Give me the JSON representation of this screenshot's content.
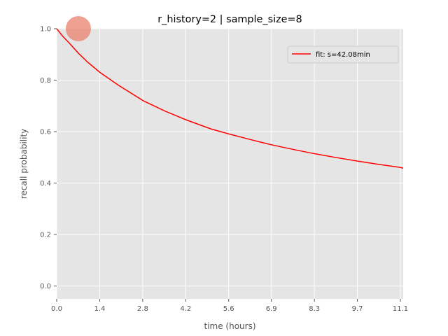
{
  "chart_data": {
    "type": "line",
    "title": "r_history=2 | sample_size=8",
    "xlabel": "time (hours)",
    "ylabel": "recall probability",
    "xlim": [
      0.0,
      11.2
    ],
    "ylim": [
      -0.05,
      1.0
    ],
    "x_ticks": [
      "0.0",
      "1.4",
      "2.8",
      "4.2",
      "5.6",
      "6.9",
      "8.3",
      "9.7",
      "11.1"
    ],
    "x_tick_values": [
      0.0,
      1.39,
      2.78,
      4.17,
      5.56,
      6.94,
      8.33,
      9.72,
      11.11
    ],
    "y_ticks": [
      "0.0",
      "0.2",
      "0.4",
      "0.6",
      "0.8",
      "1.0"
    ],
    "y_tick_values": [
      0.0,
      0.2,
      0.4,
      0.6,
      0.8,
      1.0
    ],
    "grid": true,
    "legend": {
      "position": "top-right"
    },
    "series": [
      {
        "name": "fit: s=42.08min",
        "color": "#ff0000",
        "kind": "line",
        "x": [
          0.0,
          0.2,
          0.4,
          0.7,
          1.0,
          1.4,
          2.0,
          2.8,
          3.5,
          4.2,
          5.0,
          5.6,
          6.3,
          6.9,
          7.6,
          8.3,
          9.0,
          9.7,
          10.4,
          11.1,
          11.2
        ],
        "y": [
          1.0,
          0.97,
          0.945,
          0.905,
          0.87,
          0.83,
          0.78,
          0.72,
          0.68,
          0.645,
          0.61,
          0.59,
          0.568,
          0.55,
          0.532,
          0.515,
          0.5,
          0.486,
          0.473,
          0.461,
          0.458
        ]
      },
      {
        "name": "",
        "color": "#e8826c",
        "kind": "scatter",
        "x": [
          0.7
        ],
        "y": [
          1.0
        ]
      }
    ]
  }
}
